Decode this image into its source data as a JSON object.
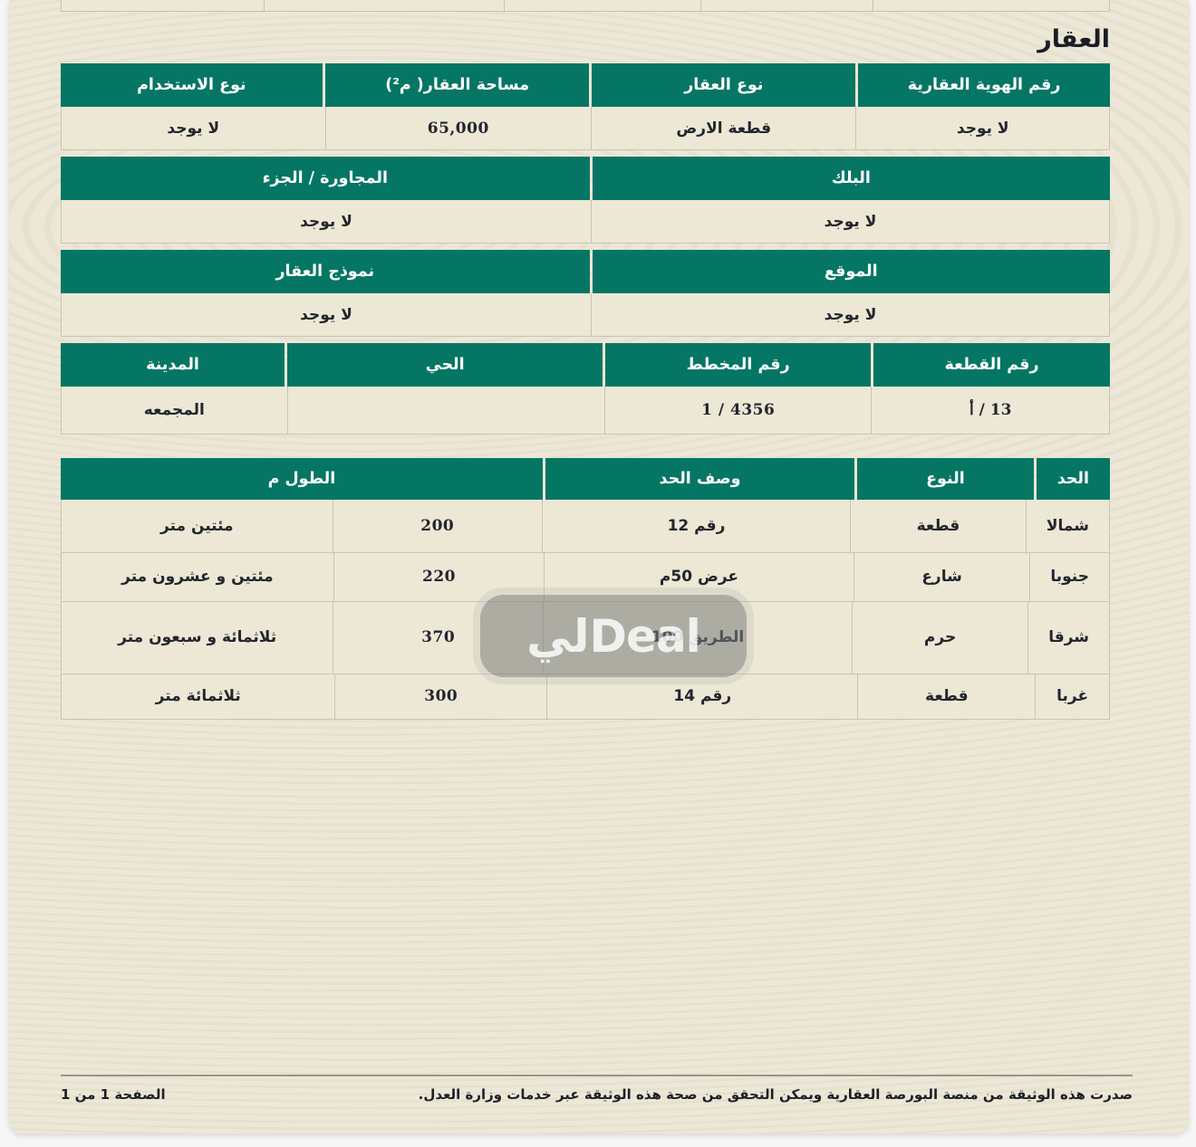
{
  "page": {
    "title": "العقار"
  },
  "colors": {
    "header_green": "#067664",
    "paper": "#ebe6d3",
    "row_background": "#ece8d5",
    "text_dark": "#23262e"
  },
  "watermark": {
    "arabic_part": "لي",
    "latin_part": "Deal"
  },
  "property_table": {
    "section1": {
      "headers": [
        "رقم الهوية العقارية",
        "نوع العقار",
        "مساحة العقار( م²)",
        "نوع الاستخدام"
      ],
      "values": [
        "لا يوجد",
        "قطعة الارض",
        "65,000",
        "لا يوجد"
      ]
    },
    "section2": {
      "headers": [
        "البلك",
        "المجاورة / الجزء"
      ],
      "values": [
        "لا يوجد",
        "لا يوجد"
      ]
    },
    "section3": {
      "headers": [
        "الموقع",
        "نموذج العقار"
      ],
      "values": [
        "لا يوجد",
        "لا يوجد"
      ]
    },
    "section4": {
      "headers": [
        "رقم القطعة",
        "رقم المخطط",
        "الحي",
        "المدينة"
      ],
      "values": [
        "13 / أ",
        "4356 / 1",
        "",
        "المجمعه"
      ]
    }
  },
  "borders_table": {
    "headers": [
      "الحد",
      "النوع",
      "وصف الحد",
      "الطول م"
    ],
    "rows": [
      {
        "side": "شمالا",
        "type": "قطعة",
        "description": "رقم 12",
        "length_value": "200",
        "length_text": "مئتين متر"
      },
      {
        "side": "جنوبا",
        "type": "شارع",
        "description": "عرض 50م",
        "length_value": "220",
        "length_text": "مئتين و عشرون متر"
      },
      {
        "side": "شرقا",
        "type": "حرم",
        "description": "الطريق 100",
        "length_value": "370",
        "length_text": "ثلاثمائة و سبعون متر"
      },
      {
        "side": "غربا",
        "type": "قطعة",
        "description": "رقم 14",
        "length_value": "300",
        "length_text": "ثلاثمائة متر"
      }
    ]
  },
  "footer": {
    "note": "صدرت هذه الوثيقة من منصة البورصة العقارية ويمكن التحقق من صحة هذه الوثيقة عبر خدمات وزارة العدل.",
    "page_indicator": "الصفحة 1 من 1"
  }
}
